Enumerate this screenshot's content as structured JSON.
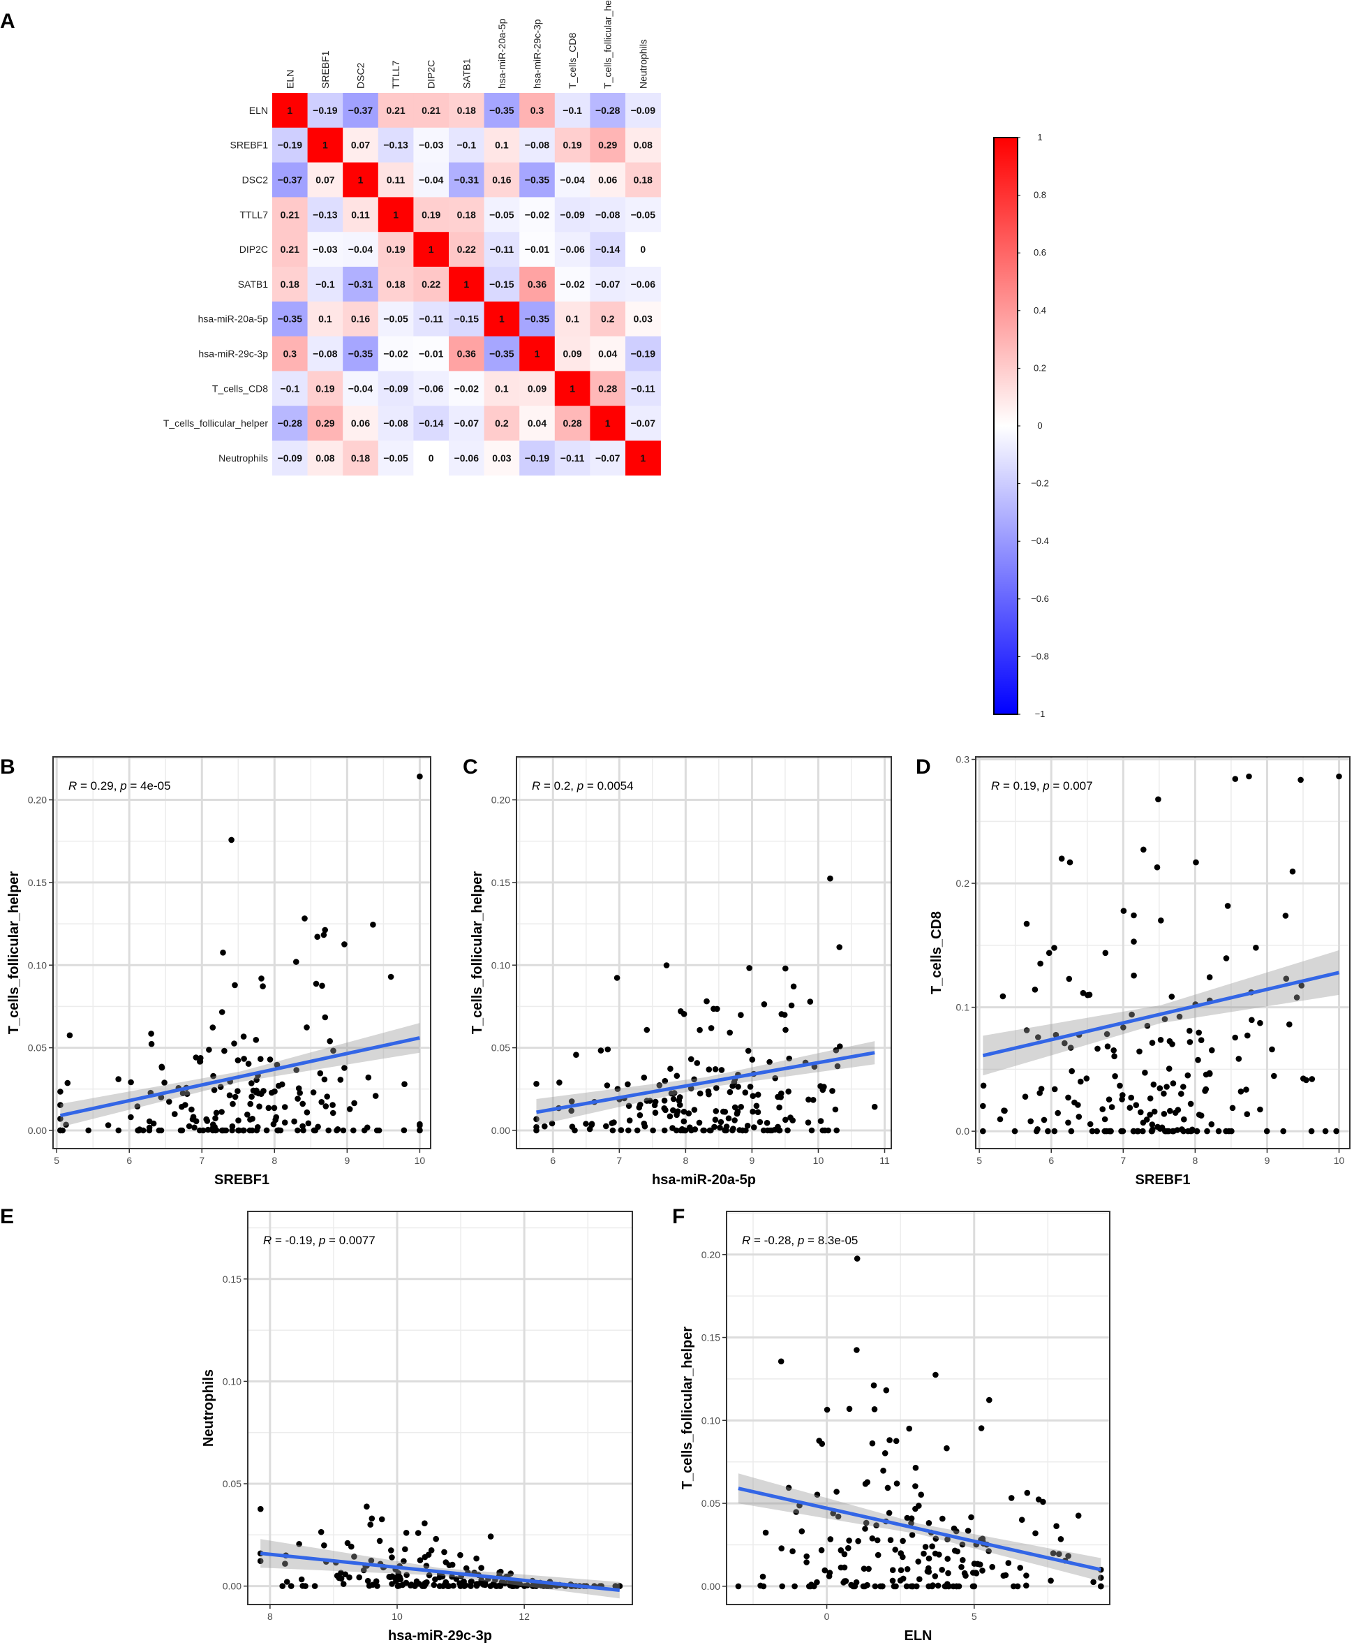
{
  "chart_data": [
    {
      "panel": "A",
      "type": "heatmap",
      "variables": [
        "ELN",
        "SREBF1",
        "DSC2",
        "TTLL7",
        "DIP2C",
        "SATB1",
        "hsa-miR-20a-5p",
        "hsa-miR-29c-3p",
        "T_cells_CD8",
        "T_cells_follicular_helper",
        "Neutrophils"
      ],
      "matrix": [
        [
          1,
          -0.19,
          -0.37,
          0.21,
          0.21,
          0.18,
          -0.35,
          0.3,
          -0.1,
          -0.28,
          -0.09
        ],
        [
          -0.19,
          1,
          0.07,
          -0.13,
          -0.03,
          -0.1,
          0.1,
          -0.08,
          0.19,
          0.29,
          0.08
        ],
        [
          -0.37,
          0.07,
          1,
          0.11,
          -0.04,
          -0.31,
          0.16,
          -0.35,
          -0.04,
          0.06,
          0.18
        ],
        [
          0.21,
          -0.13,
          0.11,
          1,
          0.19,
          0.18,
          -0.05,
          -0.02,
          -0.09,
          -0.08,
          -0.05
        ],
        [
          0.21,
          -0.03,
          -0.04,
          0.19,
          1,
          0.22,
          -0.11,
          -0.01,
          -0.06,
          -0.14,
          0
        ],
        [
          0.18,
          -0.1,
          -0.31,
          0.18,
          0.22,
          1,
          -0.15,
          0.36,
          -0.02,
          -0.07,
          -0.06
        ],
        [
          -0.35,
          0.1,
          0.16,
          -0.05,
          -0.11,
          -0.15,
          1,
          -0.35,
          0.1,
          0.2,
          0.03
        ],
        [
          0.3,
          -0.08,
          -0.35,
          -0.02,
          -0.01,
          0.36,
          -0.35,
          1,
          0.09,
          0.04,
          -0.19
        ],
        [
          -0.1,
          0.19,
          -0.04,
          -0.09,
          -0.06,
          -0.02,
          0.1,
          0.09,
          1,
          0.28,
          -0.11
        ],
        [
          -0.28,
          0.29,
          0.06,
          -0.08,
          -0.14,
          -0.07,
          0.2,
          0.04,
          0.28,
          1,
          -0.07
        ],
        [
          -0.09,
          0.08,
          0.18,
          -0.05,
          0,
          -0.06,
          0.03,
          -0.19,
          -0.11,
          -0.07,
          1
        ]
      ],
      "colorbar": {
        "ticks": [
          "1",
          "0.8",
          "0.6",
          "0.4",
          "0.2",
          "0",
          "−0.2",
          "−0.4",
          "−0.6",
          "−0.8",
          "−1"
        ],
        "low": "#0000ff",
        "mid": "#ffffff",
        "high": "#ff0000"
      }
    },
    {
      "panel": "B",
      "type": "scatter",
      "xlabel": "SREBF1",
      "ylabel": "T_cells_follicular_helper",
      "xlim": [
        4.95,
        10.15
      ],
      "ylim": [
        -0.011,
        0.226
      ],
      "xticks": [
        "5",
        "6",
        "7",
        "8",
        "9",
        "10"
      ],
      "yticks": [
        "0.00",
        "0.05",
        "0.10",
        "0.15",
        "0.20"
      ],
      "annotation": {
        "r": "0.29",
        "p": "4e-05"
      },
      "fit": {
        "x": [
          5.05,
          10.0
        ],
        "y": [
          0.009,
          0.056
        ]
      },
      "band": [
        0.007,
        0.009
      ]
    },
    {
      "panel": "C",
      "type": "scatter",
      "xlabel": "hsa-miR-20a-5p",
      "ylabel": "T_cells_follicular_helper",
      "xlim": [
        5.45,
        11.1
      ],
      "ylim": [
        -0.011,
        0.226
      ],
      "xticks": [
        "6",
        "7",
        "8",
        "9",
        "10",
        "11"
      ],
      "yticks": [
        "0.00",
        "0.05",
        "0.10",
        "0.15",
        "0.20"
      ],
      "annotation": {
        "r": "0.2",
        "p": "0.0054"
      },
      "fit": {
        "x": [
          5.75,
          10.85
        ],
        "y": [
          0.011,
          0.047
        ]
      },
      "band": [
        0.008,
        0.007
      ]
    },
    {
      "panel": "D",
      "type": "scatter",
      "xlabel": "SREBF1",
      "ylabel": "T_cells_CD8",
      "xlim": [
        4.95,
        10.15
      ],
      "ylim": [
        -0.014,
        0.302
      ],
      "xticks": [
        "5",
        "6",
        "7",
        "8",
        "9",
        "10"
      ],
      "yticks": [
        "0.0",
        "0.1",
        "0.2",
        "0.3"
      ],
      "annotation": {
        "r": "0.19",
        "p": "0.007"
      },
      "fit": {
        "x": [
          5.05,
          10.0
        ],
        "y": [
          0.061,
          0.128
        ]
      },
      "band": [
        0.016,
        0.018
      ]
    },
    {
      "panel": "E",
      "type": "scatter",
      "xlabel": "hsa-miR-29c-3p",
      "ylabel": "Neutrophils",
      "xlim": [
        7.65,
        13.7
      ],
      "ylim": [
        -0.009,
        0.183
      ],
      "xticks": [
        "8",
        "10",
        "12"
      ],
      "yticks": [
        "0.00",
        "0.05",
        "0.10",
        "0.15"
      ],
      "annotation": {
        "r": "-0.19",
        "p": "0.0077"
      },
      "fit": {
        "x": [
          7.85,
          13.5
        ],
        "y": [
          0.016,
          -0.002
        ]
      },
      "band": [
        0.007,
        0.004
      ]
    },
    {
      "panel": "F",
      "type": "scatter",
      "xlabel": "ELN",
      "ylabel": "T_cells_follicular_helper",
      "xlim": [
        -3.4,
        9.6
      ],
      "ylim": [
        -0.011,
        0.226
      ],
      "xticks": [
        "0",
        "5"
      ],
      "yticks": [
        "0.00",
        "0.05",
        "0.10",
        "0.15",
        "0.20"
      ],
      "annotation": {
        "r": "-0.28",
        "p": "8.3e-05"
      },
      "fit": {
        "x": [
          -3.0,
          9.3
        ],
        "y": [
          0.059,
          0.01
        ]
      },
      "band": [
        0.009,
        0.007
      ]
    }
  ],
  "labels": {
    "panel_A": "A",
    "panel_B": "B",
    "panel_C": "C",
    "panel_D": "D",
    "panel_E": "E",
    "panel_F": "F"
  }
}
